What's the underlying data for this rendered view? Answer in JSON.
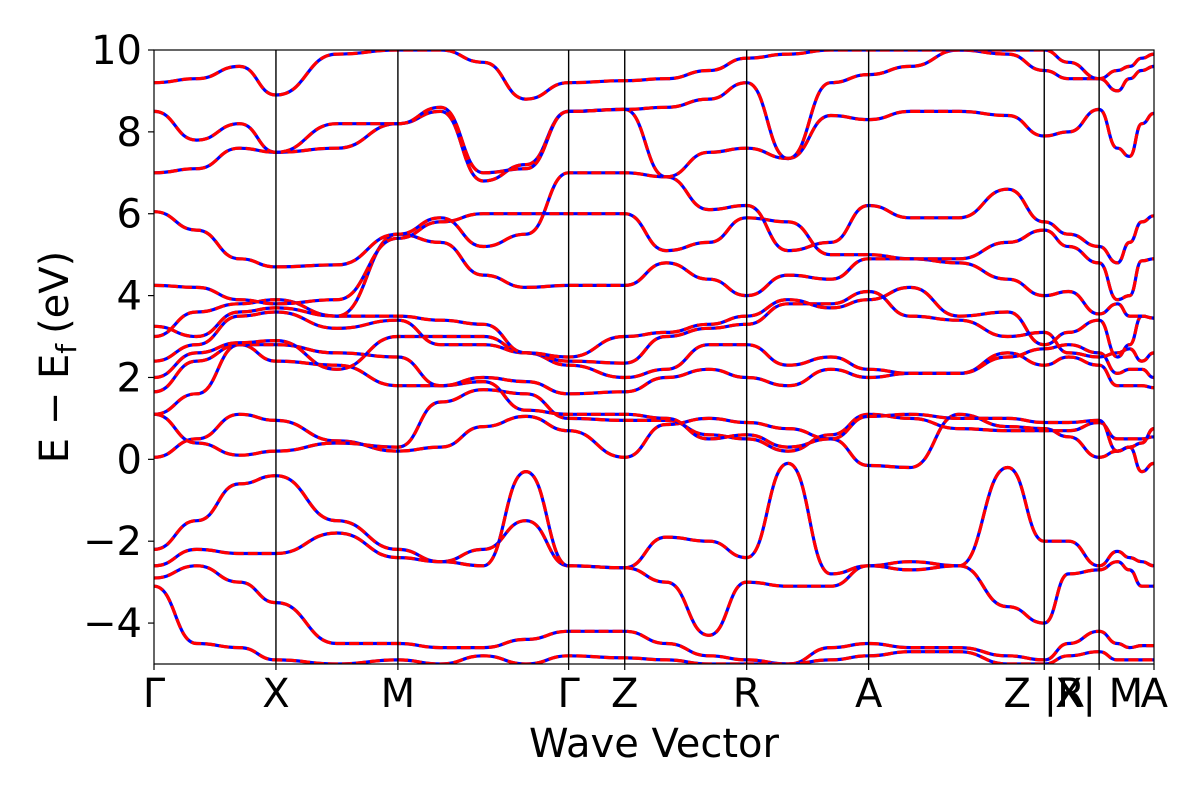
{
  "chart_data": {
    "type": "line",
    "title": "",
    "xlabel": "Wave Vector",
    "ylabel": "E − E",
    "ylabel_subscript": "f",
    "ylabel_unit": "(eV)",
    "ylim": [
      -5,
      10
    ],
    "y_ticks": [
      -4,
      -2,
      0,
      2,
      4,
      6,
      8,
      10
    ],
    "y_tick_labels": [
      "−4",
      "−2",
      "0",
      "2",
      "4",
      "6",
      "8",
      "10"
    ],
    "grid": false,
    "legend": "none",
    "x_segments": [
      {
        "start": 0,
        "end": 1.0
      },
      {
        "start": 1.0,
        "end": 2.0
      },
      {
        "start": 2.0,
        "end": 3.4
      },
      {
        "start": 3.4,
        "end": 3.86
      },
      {
        "start": 3.86,
        "end": 4.86
      },
      {
        "start": 4.86,
        "end": 5.86
      },
      {
        "start": 5.86,
        "end": 7.3
      },
      {
        "start": 7.3,
        "end": 7.75
      },
      {
        "start": 7.75,
        "end": 8.2
      }
    ],
    "xlim": [
      0,
      8.2
    ],
    "high_symmetry_points": [
      {
        "label": "Γ",
        "x": 0
      },
      {
        "label": "X",
        "x": 1.0
      },
      {
        "label": "M",
        "x": 2.0
      },
      {
        "label": "Γ",
        "x": 3.4
      },
      {
        "label": "Z",
        "x": 3.86
      },
      {
        "label": "R",
        "x": 4.86
      },
      {
        "label": "A",
        "x": 5.86
      },
      {
        "label": "Z |R",
        "x": 7.3
      },
      {
        "label": "X| M",
        "x": 7.75
      },
      {
        "label": "A",
        "x": 8.2
      }
    ],
    "vertical_line_positions": [
      1.0,
      2.0,
      3.4,
      3.86,
      4.86,
      5.86,
      7.3,
      7.75
    ],
    "series_styles": [
      {
        "color": "#0000ff",
        "dash": "solid",
        "width": 3.2
      },
      {
        "color": "#ff0000",
        "dash": "dashed",
        "width": 3.2
      }
    ],
    "bands": [
      [
        0.05,
        0.5,
        1.1,
        0.95,
        0.45,
        0.2,
        0.3,
        0.8,
        1.05,
        0.7,
        0.05,
        0.85,
        1.0,
        0.9,
        0.75,
        0.5,
        -0.15,
        -0.2,
        1.1,
        0.8,
        0.75,
        0.55,
        0.05,
        0.2,
        0.3,
        -0.3,
        -0.1
      ],
      [
        1.1,
        0.4,
        0.1,
        0.2,
        0.4,
        0.3,
        1.4,
        1.7,
        1.6,
        1.0,
        0.95,
        0.95,
        0.6,
        0.5,
        0.2,
        0.6,
        1.1,
        1.0,
        0.75,
        0.7,
        0.7,
        0.7,
        0.9,
        0.5,
        0.5,
        0.5,
        0.55
      ],
      [
        1.1,
        1.6,
        2.8,
        2.4,
        2.3,
        1.8,
        1.8,
        1.9,
        1.2,
        1.1,
        1.1,
        1.0,
        0.5,
        0.6,
        0.3,
        0.5,
        1.05,
        1.1,
        1.0,
        1.0,
        0.9,
        0.9,
        0.95,
        0.2,
        0.3,
        0.4,
        0.75
      ],
      [
        1.65,
        2.4,
        2.8,
        2.8,
        2.6,
        2.5,
        1.8,
        2.0,
        1.9,
        1.6,
        1.65,
        2.0,
        2.2,
        2.0,
        1.8,
        2.2,
        2.0,
        2.1,
        2.1,
        2.6,
        2.3,
        2.5,
        2.3,
        1.8,
        1.8,
        1.8,
        1.75
      ],
      [
        2.0,
        2.6,
        2.85,
        2.9,
        2.2,
        3.0,
        3.0,
        3.0,
        2.6,
        2.3,
        2.0,
        2.2,
        2.8,
        2.8,
        2.3,
        2.5,
        2.2,
        2.1,
        2.1,
        2.5,
        2.7,
        2.8,
        2.6,
        2.1,
        2.2,
        2.2,
        2.0
      ],
      [
        2.4,
        2.8,
        3.5,
        3.6,
        3.2,
        3.4,
        2.8,
        2.8,
        2.6,
        2.4,
        2.35,
        3.0,
        3.2,
        3.3,
        3.8,
        3.8,
        4.1,
        3.5,
        3.4,
        3.0,
        3.1,
        2.6,
        2.5,
        2.6,
        2.7,
        2.4,
        2.6
      ],
      [
        3.0,
        3.6,
        3.8,
        3.9,
        3.5,
        3.5,
        3.4,
        3.3,
        2.6,
        2.5,
        3.0,
        3.1,
        3.3,
        3.5,
        3.9,
        3.7,
        3.9,
        4.2,
        3.5,
        3.6,
        2.8,
        3.1,
        3.4,
        2.5,
        2.8,
        3.5,
        3.45
      ],
      [
        3.25,
        3.0,
        3.6,
        3.7,
        3.5,
        5.5,
        5.3,
        4.5,
        4.2,
        4.25,
        4.25,
        4.8,
        4.4,
        4.0,
        4.5,
        4.4,
        4.9,
        4.9,
        4.8,
        4.4,
        4.0,
        4.1,
        3.55,
        3.8,
        3.5,
        3.5,
        3.45
      ],
      [
        4.25,
        4.2,
        3.9,
        3.8,
        3.9,
        5.4,
        5.8,
        6.0,
        6.0,
        6.0,
        6.0,
        5.1,
        5.3,
        5.9,
        5.8,
        5.0,
        5.0,
        4.9,
        4.9,
        5.3,
        5.6,
        5.2,
        4.8,
        3.9,
        4.0,
        4.85,
        4.9
      ],
      [
        6.05,
        5.6,
        4.9,
        4.7,
        4.75,
        5.5,
        5.9,
        5.2,
        5.5,
        7.0,
        7.0,
        6.9,
        6.1,
        6.2,
        5.1,
        5.3,
        6.2,
        5.9,
        5.9,
        6.6,
        5.8,
        5.5,
        5.2,
        4.8,
        5.3,
        5.8,
        5.95
      ],
      [
        7.0,
        7.1,
        7.6,
        7.5,
        7.6,
        8.2,
        8.5,
        6.8,
        7.2,
        8.5,
        8.55,
        6.9,
        7.5,
        7.6,
        7.35,
        8.4,
        8.3,
        8.5,
        8.5,
        8.4,
        7.9,
        8.0,
        8.55,
        7.6,
        7.4,
        8.2,
        8.45
      ],
      [
        8.5,
        7.8,
        8.2,
        7.5,
        8.2,
        8.2,
        8.6,
        7.0,
        7.1,
        8.5,
        8.55,
        8.6,
        8.8,
        9.2,
        7.35,
        9.2,
        9.4,
        9.6,
        10.0,
        9.9,
        9.5,
        9.3,
        9.3,
        9.0,
        9.3,
        9.5,
        9.6
      ],
      [
        9.2,
        9.3,
        9.6,
        8.9,
        9.9,
        10.0,
        10.0,
        9.7,
        8.8,
        9.2,
        9.25,
        9.3,
        9.5,
        9.8,
        9.9,
        10.0,
        10.0,
        10.0,
        10.0,
        10.0,
        10.0,
        9.7,
        9.3,
        9.5,
        9.6,
        9.8,
        9.9
      ],
      [
        -2.2,
        -1.5,
        -0.6,
        -0.4,
        -1.5,
        -2.2,
        -2.5,
        -2.2,
        -1.5,
        -2.6,
        -2.65,
        -1.9,
        -2.0,
        -2.4,
        -0.1,
        -2.8,
        -2.6,
        -2.5,
        -2.6,
        -0.2,
        -2.0,
        -2.0,
        -2.6,
        -2.25,
        -2.4,
        -2.5,
        -2.6
      ],
      [
        -2.6,
        -2.2,
        -2.3,
        -2.3,
        -1.8,
        -2.4,
        -2.5,
        -2.6,
        -0.3,
        -2.6,
        -2.65,
        -3.0,
        -4.3,
        -3.0,
        -3.1,
        -3.1,
        -2.6,
        -2.7,
        -2.6,
        -3.6,
        -4.0,
        -2.8,
        -2.7,
        -2.5,
        -2.7,
        -3.1,
        -3.1
      ],
      [
        -2.9,
        -2.6,
        -3.0,
        -3.5,
        -4.5,
        -4.5,
        -4.6,
        -4.6,
        -4.4,
        -4.2,
        -4.2,
        -4.5,
        -4.8,
        -4.9,
        -5.0,
        -4.6,
        -4.5,
        -4.6,
        -4.6,
        -4.8,
        -4.9,
        -4.5,
        -4.2,
        -4.5,
        -4.6,
        -4.55,
        -4.55
      ],
      [
        -3.1,
        -4.5,
        -4.6,
        -4.9,
        -5.0,
        -4.9,
        -5.0,
        -4.8,
        -5.0,
        -4.8,
        -4.85,
        -4.9,
        -5.0,
        -5.0,
        -5.0,
        -4.9,
        -4.8,
        -4.7,
        -4.7,
        -5.0,
        -5.0,
        -4.8,
        -4.7,
        -4.9,
        -4.9,
        -4.9,
        -4.9
      ]
    ],
    "band_sample_x": [
      0,
      0.35,
      0.7,
      1.0,
      1.5,
      2.0,
      2.35,
      2.7,
      3.05,
      3.4,
      3.86,
      4.2,
      4.55,
      4.86,
      5.2,
      5.55,
      5.86,
      6.2,
      6.6,
      7.0,
      7.3,
      7.5,
      7.75,
      7.9,
      8.0,
      8.1,
      8.2
    ]
  }
}
